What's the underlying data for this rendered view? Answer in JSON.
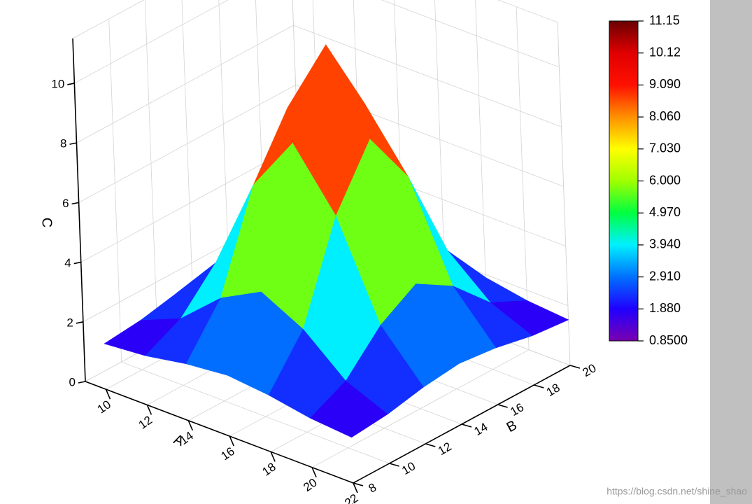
{
  "chart_data": {
    "type": "surface3d",
    "xlabel": "A",
    "ylabel": "B",
    "zlabel": "C",
    "x": [
      10,
      12,
      14,
      16,
      18,
      20,
      22
    ],
    "y": [
      8,
      10,
      12,
      14,
      16,
      18,
      20
    ],
    "z": [
      [
        1.53,
        1.65,
        1.9,
        2.04,
        1.9,
        1.65,
        1.53
      ],
      [
        1.65,
        2.24,
        3.45,
        4.18,
        3.45,
        2.24,
        1.65
      ],
      [
        1.9,
        3.45,
        6.59,
        8.51,
        6.59,
        3.45,
        1.9
      ],
      [
        2.04,
        4.18,
        8.51,
        11.15,
        8.51,
        4.18,
        2.04
      ],
      [
        1.9,
        3.45,
        6.59,
        8.51,
        6.59,
        3.45,
        1.9
      ],
      [
        1.65,
        2.24,
        3.45,
        4.18,
        3.45,
        2.24,
        1.65
      ],
      [
        1.53,
        1.65,
        1.9,
        2.04,
        1.9,
        1.65,
        1.53
      ]
    ],
    "xlim": [
      9,
      22
    ],
    "ylim": [
      8,
      20
    ],
    "zlim": [
      0,
      11.5
    ],
    "xticks": [
      10,
      12,
      14,
      16,
      18,
      20,
      22
    ],
    "yticks": [
      8,
      10,
      12,
      14,
      16,
      18,
      20
    ],
    "zticks": [
      0,
      2,
      4,
      6,
      8,
      10
    ],
    "grid": true,
    "colormap": [
      "#7a00b0",
      "#2000ff",
      "#0070ff",
      "#00f0ff",
      "#00ff40",
      "#a0ff00",
      "#ffff00",
      "#ff9000",
      "#ff1000",
      "#e00000",
      "#6a0000"
    ],
    "colorbar": {
      "lim": [
        0.85,
        11.15
      ],
      "ticks": [
        {
          "value": 0.85,
          "label": "0.8500"
        },
        {
          "value": 1.88,
          "label": "1.880"
        },
        {
          "value": 2.91,
          "label": "2.910"
        },
        {
          "value": 3.94,
          "label": "3.940"
        },
        {
          "value": 4.97,
          "label": "4.970"
        },
        {
          "value": 6.0,
          "label": "6.000"
        },
        {
          "value": 7.03,
          "label": "7.030"
        },
        {
          "value": 8.06,
          "label": "8.060"
        },
        {
          "value": 9.09,
          "label": "9.090"
        },
        {
          "value": 10.12,
          "label": "10.12"
        },
        {
          "value": 11.15,
          "label": "11.15"
        }
      ]
    },
    "watermark": "https://blog.csdn.net/shine_shao"
  }
}
